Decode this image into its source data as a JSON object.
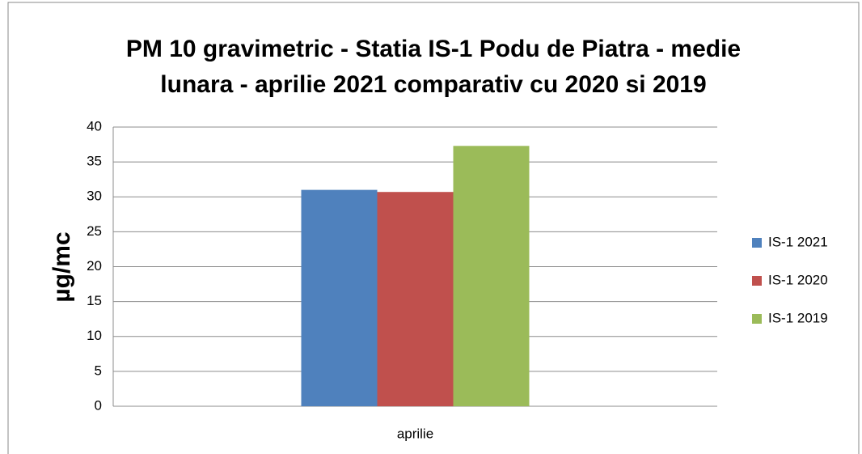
{
  "chart_data": {
    "type": "bar",
    "title": [
      "PM 10 gravimetric - Statia IS-1 Podu de Piatra - medie",
      "lunara - aprilie 2021 comparativ cu 2020 si 2019"
    ],
    "y_label": "µg/mc",
    "categories": [
      "aprilie"
    ],
    "series": [
      {
        "name": "IS-1 2021",
        "color": "#4f81bd",
        "values": [
          31
        ]
      },
      {
        "name": "IS-1 2020",
        "color": "#c0504d",
        "values": [
          30.7
        ]
      },
      {
        "name": "IS-1 2019",
        "color": "#9bbb59",
        "values": [
          37.3
        ]
      }
    ],
    "ylim": [
      0,
      40
    ],
    "yticks": [
      0,
      5,
      10,
      15,
      20,
      25,
      30,
      35,
      40
    ],
    "grid": true,
    "legend": "right"
  }
}
